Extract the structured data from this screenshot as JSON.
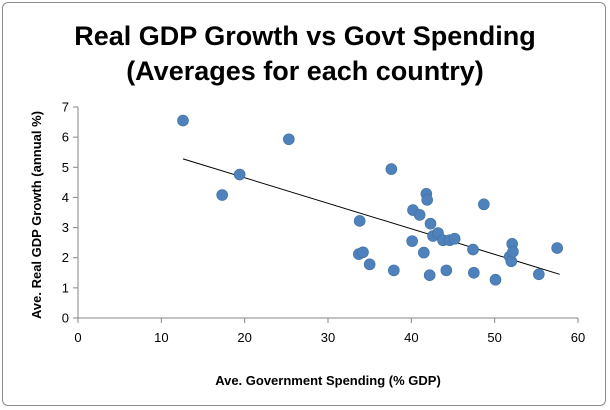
{
  "chart_data": {
    "type": "scatter",
    "title_lines": [
      "Real GDP Growth vs Govt Spending",
      "(Averages for each country)"
    ],
    "xlabel": "Ave. Government Spending (% GDP)",
    "ylabel": "Ave. Real GDP Growth (annual %)",
    "xlim": [
      0,
      60
    ],
    "ylim": [
      0,
      7
    ],
    "xticks": [
      "0",
      "10",
      "20",
      "30",
      "40",
      "50",
      "60"
    ],
    "yticks": [
      "0",
      "1",
      "2",
      "3",
      "4",
      "5",
      "6",
      "7"
    ],
    "grid": false,
    "legend": "none",
    "marker_color": "#4f81bd",
    "trendline_color": "#000000",
    "trendline": {
      "x": [
        12.6,
        57.8
      ],
      "y": [
        5.28,
        1.45
      ]
    },
    "points": [
      {
        "x": 12.6,
        "y": 6.55
      },
      {
        "x": 17.3,
        "y": 4.08
      },
      {
        "x": 19.4,
        "y": 4.76
      },
      {
        "x": 25.3,
        "y": 5.93
      },
      {
        "x": 33.7,
        "y": 2.12
      },
      {
        "x": 33.8,
        "y": 3.22
      },
      {
        "x": 34.2,
        "y": 2.18
      },
      {
        "x": 35.0,
        "y": 1.78
      },
      {
        "x": 37.6,
        "y": 4.94
      },
      {
        "x": 37.9,
        "y": 1.58
      },
      {
        "x": 40.1,
        "y": 2.55
      },
      {
        "x": 40.2,
        "y": 3.58
      },
      {
        "x": 41.0,
        "y": 3.42
      },
      {
        "x": 41.5,
        "y": 2.17
      },
      {
        "x": 41.8,
        "y": 4.12
      },
      {
        "x": 41.9,
        "y": 3.92
      },
      {
        "x": 42.2,
        "y": 1.42
      },
      {
        "x": 42.3,
        "y": 3.13
      },
      {
        "x": 42.6,
        "y": 2.72
      },
      {
        "x": 43.2,
        "y": 2.82
      },
      {
        "x": 43.8,
        "y": 2.58
      },
      {
        "x": 44.2,
        "y": 1.58
      },
      {
        "x": 44.6,
        "y": 2.58
      },
      {
        "x": 45.2,
        "y": 2.63
      },
      {
        "x": 47.4,
        "y": 2.27
      },
      {
        "x": 47.5,
        "y": 1.5
      },
      {
        "x": 48.7,
        "y": 3.77
      },
      {
        "x": 50.1,
        "y": 1.27
      },
      {
        "x": 51.8,
        "y": 2.04
      },
      {
        "x": 52.0,
        "y": 1.88
      },
      {
        "x": 52.1,
        "y": 2.46
      },
      {
        "x": 52.2,
        "y": 2.2
      },
      {
        "x": 55.3,
        "y": 1.45
      },
      {
        "x": 57.5,
        "y": 2.32
      }
    ]
  }
}
